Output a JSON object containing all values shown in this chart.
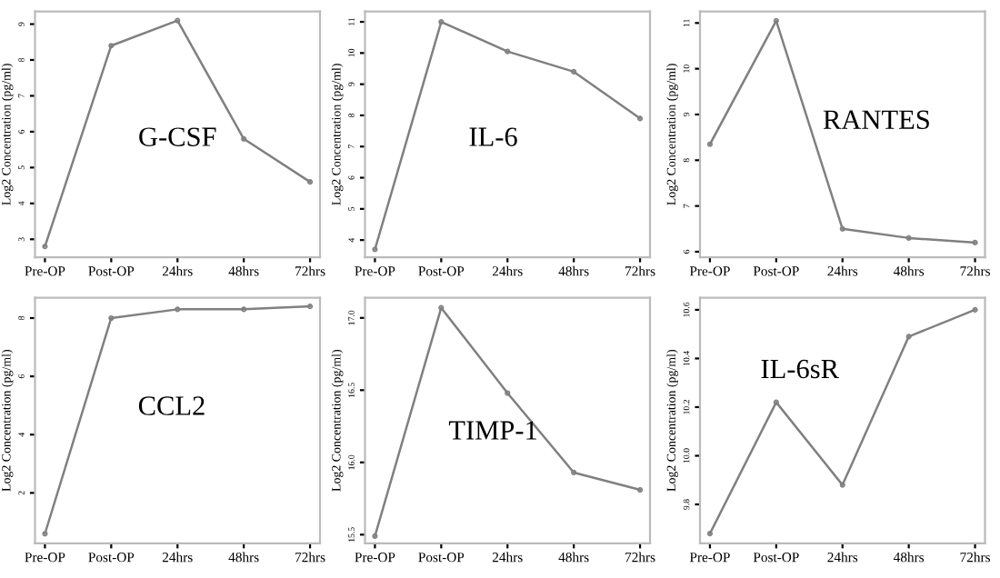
{
  "chart_data": [
    {
      "type": "line",
      "title": "G-CSF",
      "ylabel": "Log2 Concentration (pg/ml)",
      "categories": [
        "Pre-OP",
        "Post-OP",
        "24hrs",
        "48hrs",
        "72hrs"
      ],
      "series": [
        {
          "color": "#808080",
          "values": [
            2.8,
            8.4,
            9.1,
            5.8,
            4.6
          ]
        }
      ],
      "ylim": [
        2.5,
        9.35
      ],
      "yticks": [
        3,
        4,
        5,
        6,
        7,
        8,
        9
      ],
      "marker": "circle",
      "grid": false
    },
    {
      "type": "line",
      "title": "IL-6",
      "ylabel": "Log2 Concentration (pg/ml)",
      "categories": [
        "Pre-OP",
        "Post-OP",
        "24hrs",
        "48hrs",
        "72hrs"
      ],
      "series": [
        {
          "color": "#808080",
          "values": [
            3.7,
            11.0,
            10.05,
            9.4,
            7.9
          ]
        }
      ],
      "ylim": [
        3.45,
        11.33
      ],
      "yticks": [
        4,
        5,
        6,
        7,
        8,
        9,
        10,
        11
      ],
      "marker": "circle",
      "grid": false
    },
    {
      "type": "line",
      "title": "RANTES",
      "ylabel": "Log2 Concentration (pg/ml)",
      "categories": [
        "Pre-OP",
        "Post-OP",
        "24hrs",
        "48hrs",
        "72hrs"
      ],
      "series": [
        {
          "color": "#808080",
          "values": [
            8.35,
            11.05,
            6.5,
            6.3,
            6.2
          ]
        }
      ],
      "ylim": [
        5.88,
        11.25
      ],
      "yticks": [
        6,
        7,
        8,
        9,
        10,
        11
      ],
      "marker": "circle",
      "grid": false
    },
    {
      "type": "line",
      "title": "CCL2",
      "ylabel": "Log2 Concentration (pg/ml)",
      "categories": [
        "Pre-OP",
        "Post-OP",
        "24hrs",
        "48hrs",
        "72hrs"
      ],
      "series": [
        {
          "color": "#808080",
          "values": [
            0.6,
            8.0,
            8.3,
            8.3,
            8.4
          ]
        }
      ],
      "ylim": [
        0.27,
        8.7
      ],
      "yticks": [
        2,
        4,
        6,
        8
      ],
      "marker": "circle",
      "grid": false
    },
    {
      "type": "line",
      "title": "TIMP-1",
      "ylabel": "Log2 Concentration (pg/ml)",
      "categories": [
        "Pre-OP",
        "Post-OP",
        "24hrs",
        "48hrs",
        "72hrs"
      ],
      "series": [
        {
          "color": "#808080",
          "values": [
            15.49,
            17.07,
            16.48,
            15.93,
            15.81
          ]
        }
      ],
      "ylim": [
        15.44,
        17.14
      ],
      "yticks": [
        15.5,
        {
          "value": 16,
          "label": "16.0"
        },
        16.5,
        {
          "value": 17,
          "label": "17.0"
        }
      ],
      "marker": "circle",
      "grid": false
    },
    {
      "type": "line",
      "title": "IL-6sR",
      "ylabel": "Log2 Concentration (pg/ml)",
      "categories": [
        "Pre-OP",
        "Post-OP",
        "24hrs",
        "48hrs",
        "72hrs"
      ],
      "series": [
        {
          "color": "#808080",
          "values": [
            9.68,
            10.22,
            9.88,
            10.49,
            10.6
          ]
        }
      ],
      "ylim": [
        9.64,
        10.65
      ],
      "yticks": [
        9.8,
        {
          "value": 10,
          "label": "10.0"
        },
        10.2,
        10.4,
        10.6
      ],
      "marker": "circle",
      "grid": false
    }
  ]
}
